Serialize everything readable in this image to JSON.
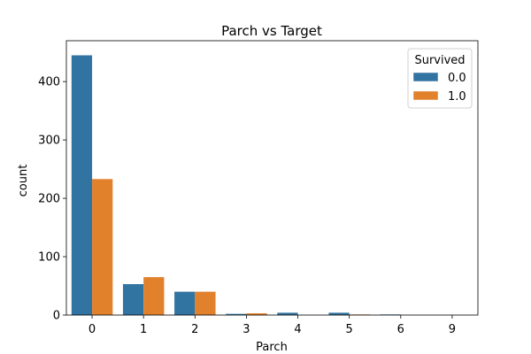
{
  "chart_data": {
    "type": "bar",
    "title": "Parch vs Target",
    "xlabel": "Parch",
    "ylabel": "count",
    "categories": [
      "0",
      "1",
      "2",
      "3",
      "4",
      "5",
      "6",
      "9"
    ],
    "series": [
      {
        "name": "0.0",
        "color": "#3274a1",
        "values": [
          445,
          53,
          40,
          2,
          4,
          4,
          1,
          0
        ]
      },
      {
        "name": "1.0",
        "color": "#e1812c",
        "values": [
          233,
          65,
          40,
          3,
          0,
          1,
          0,
          0
        ]
      }
    ],
    "ylim": [
      0,
      470
    ],
    "yticks": [
      0,
      100,
      200,
      300,
      400
    ],
    "legend": {
      "title": "Survived",
      "position": "top-right"
    },
    "grid": false
  }
}
